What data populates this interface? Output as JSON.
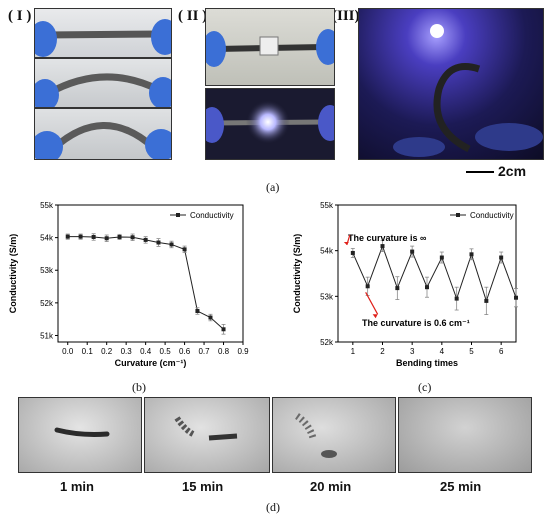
{
  "panel_a": {
    "labels": [
      "( I )",
      "( II )",
      "(III)"
    ],
    "scale_bar": "2cm",
    "caption": "(a)"
  },
  "panel_b_caption": "(b)",
  "panel_c_caption": "(c)",
  "panel_d": {
    "times": [
      "1 min",
      "15 min",
      "20 min",
      "25 min"
    ],
    "caption": "(d)"
  },
  "colors": {
    "series": "#222222",
    "arrow": "#e0201a"
  },
  "chart_data": [
    {
      "type": "line",
      "xlabel": "Curvature (cm⁻¹)",
      "ylabel": "Conductivity (S/m)",
      "legend": "Conductivity",
      "legend_position": "top-right",
      "xlim": [
        -0.05,
        0.9
      ],
      "ylim": [
        50.8,
        55
      ],
      "xticks": [
        "0.0",
        "0.1",
        "0.2",
        "0.3",
        "0.4",
        "0.5",
        "0.6",
        "0.7",
        "0.8",
        "0.9"
      ],
      "yticks": [
        "51k",
        "52k",
        "53k",
        "54k",
        "55k"
      ],
      "x": [
        0.0,
        0.066,
        0.133,
        0.2,
        0.266,
        0.333,
        0.4,
        0.466,
        0.533,
        0.6,
        0.666,
        0.733,
        0.8
      ],
      "y": [
        54.03,
        54.03,
        54.02,
        53.98,
        54.02,
        54.01,
        53.93,
        53.85,
        53.79,
        53.64,
        51.75,
        51.55,
        51.19
      ],
      "err": [
        0.08,
        0.08,
        0.1,
        0.1,
        0.08,
        0.1,
        0.1,
        0.12,
        0.1,
        0.1,
        0.1,
        0.1,
        0.15
      ]
    },
    {
      "type": "line",
      "xlabel": "Bending times",
      "ylabel": "Conductivity (S/m)",
      "legend": "Conductivity",
      "legend_position": "top-right",
      "xlim": [
        0.5,
        6.5
      ],
      "ylim": [
        52,
        55
      ],
      "xticks": [
        "1",
        "2",
        "3",
        "4",
        "5",
        "6"
      ],
      "yticks": [
        "52k",
        "53k",
        "54k",
        "55k"
      ],
      "x": [
        1,
        1.5,
        2,
        2.5,
        3,
        3.5,
        4,
        4.5,
        5,
        5.5,
        6,
        6.5
      ],
      "y": [
        53.95,
        53.22,
        54.1,
        53.18,
        53.98,
        53.2,
        53.85,
        52.95,
        53.92,
        52.9,
        53.85,
        52.97
      ],
      "err": [
        0.1,
        0.2,
        0.12,
        0.25,
        0.12,
        0.22,
        0.12,
        0.25,
        0.12,
        0.3,
        0.12,
        0.2
      ],
      "annotations": [
        "The curvature is ∞",
        "The curvature is 0.6 cm⁻¹"
      ]
    }
  ]
}
